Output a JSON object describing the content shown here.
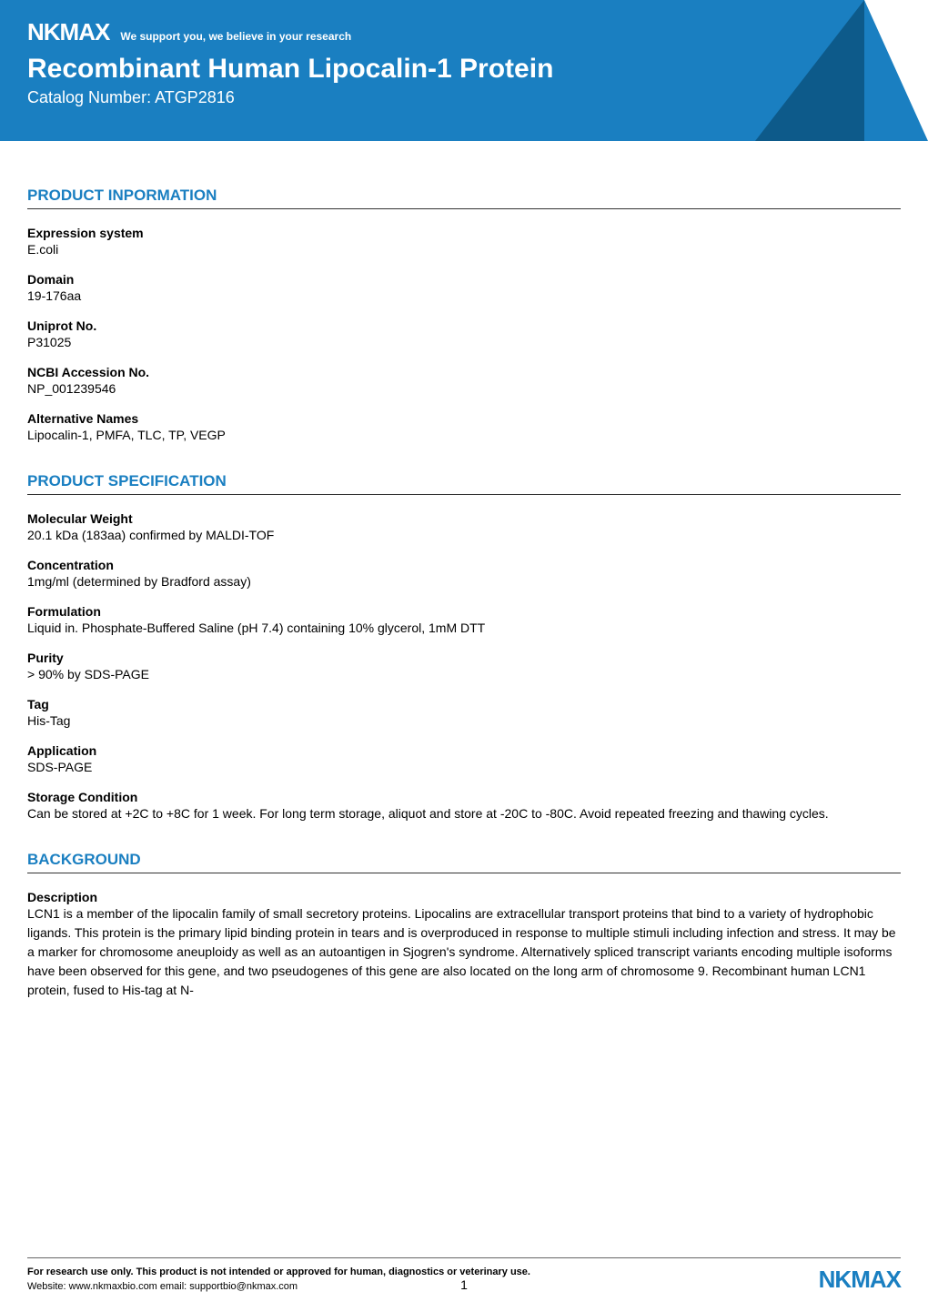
{
  "brand": {
    "logo": "NKMAX",
    "tagline": "We support you, we believe in your research",
    "logo_color_header": "#ffffff",
    "logo_color_footer": "#1a7fc1"
  },
  "header": {
    "title": "Recombinant Human Lipocalin-1 Protein",
    "catalog_label": "Catalog Number: ATGP2816",
    "bg_color": "#1a7fc1",
    "accent_color": "#0d5a8a"
  },
  "sections": {
    "product_info": {
      "heading": "PRODUCT INPORMATION",
      "fields": {
        "expression_system": {
          "label": "Expression system",
          "value": "E.coli"
        },
        "domain": {
          "label": "Domain",
          "value": "19-176aa"
        },
        "uniprot": {
          "label": "Uniprot No.",
          "value": "P31025"
        },
        "ncbi": {
          "label": "NCBI Accession No.",
          "value": "NP_001239546"
        },
        "alt_names": {
          "label": "Alternative Names",
          "value": "Lipocalin-1, PMFA, TLC, TP, VEGP"
        }
      }
    },
    "product_spec": {
      "heading": "PRODUCT SPECIFICATION",
      "fields": {
        "mol_weight": {
          "label": "Molecular Weight",
          "value": "20.1 kDa (183aa) confirmed by MALDI-TOF"
        },
        "concentration": {
          "label": "Concentration",
          "value": "1mg/ml (determined by Bradford assay)"
        },
        "formulation": {
          "label": "Formulation",
          "value": "Liquid in. Phosphate-Buffered Saline (pH 7.4) containing 10% glycerol, 1mM DTT"
        },
        "purity": {
          "label": "Purity",
          "value": "> 90% by SDS-PAGE"
        },
        "tag": {
          "label": "Tag",
          "value": "His-Tag"
        },
        "application": {
          "label": "Application",
          "value": "SDS-PAGE"
        },
        "storage": {
          "label": "Storage Condition",
          "value": "Can be stored at +2C to +8C for 1 week. For long term storage, aliquot and store at -20C to -80C. Avoid repeated freezing and thawing cycles."
        }
      }
    },
    "background": {
      "heading": "BACKGROUND",
      "fields": {
        "description": {
          "label": "Description",
          "value": "LCN1 is a member of the lipocalin family of small secretory proteins. Lipocalins are extracellular transport proteins that bind to a variety of hydrophobic ligands. This protein is the primary lipid binding protein in tears and is overproduced in response to multiple stimuli including infection and stress. It may be a marker for chromosome aneuploidy as well as an autoantigen in Sjogren's syndrome. Alternatively spliced transcript variants encoding multiple isoforms have been observed for this gene, and two pseudogenes of this gene are also located on the long arm of chromosome 9. Recombinant human LCN1 protein, fused to His-tag at N-"
        }
      }
    }
  },
  "footer": {
    "disclaimer": "For research use only. This product is not intended or approved for human, diagnostics or veterinary use.",
    "contact": "Website: www.nkmaxbio.com    email: supportbio@nkmax.com",
    "page_number": "1"
  },
  "styling": {
    "heading_color": "#1a7fc1",
    "body_font": "Verdana",
    "heading_underline_color": "#333333",
    "footer_rule_color": "#666666"
  }
}
